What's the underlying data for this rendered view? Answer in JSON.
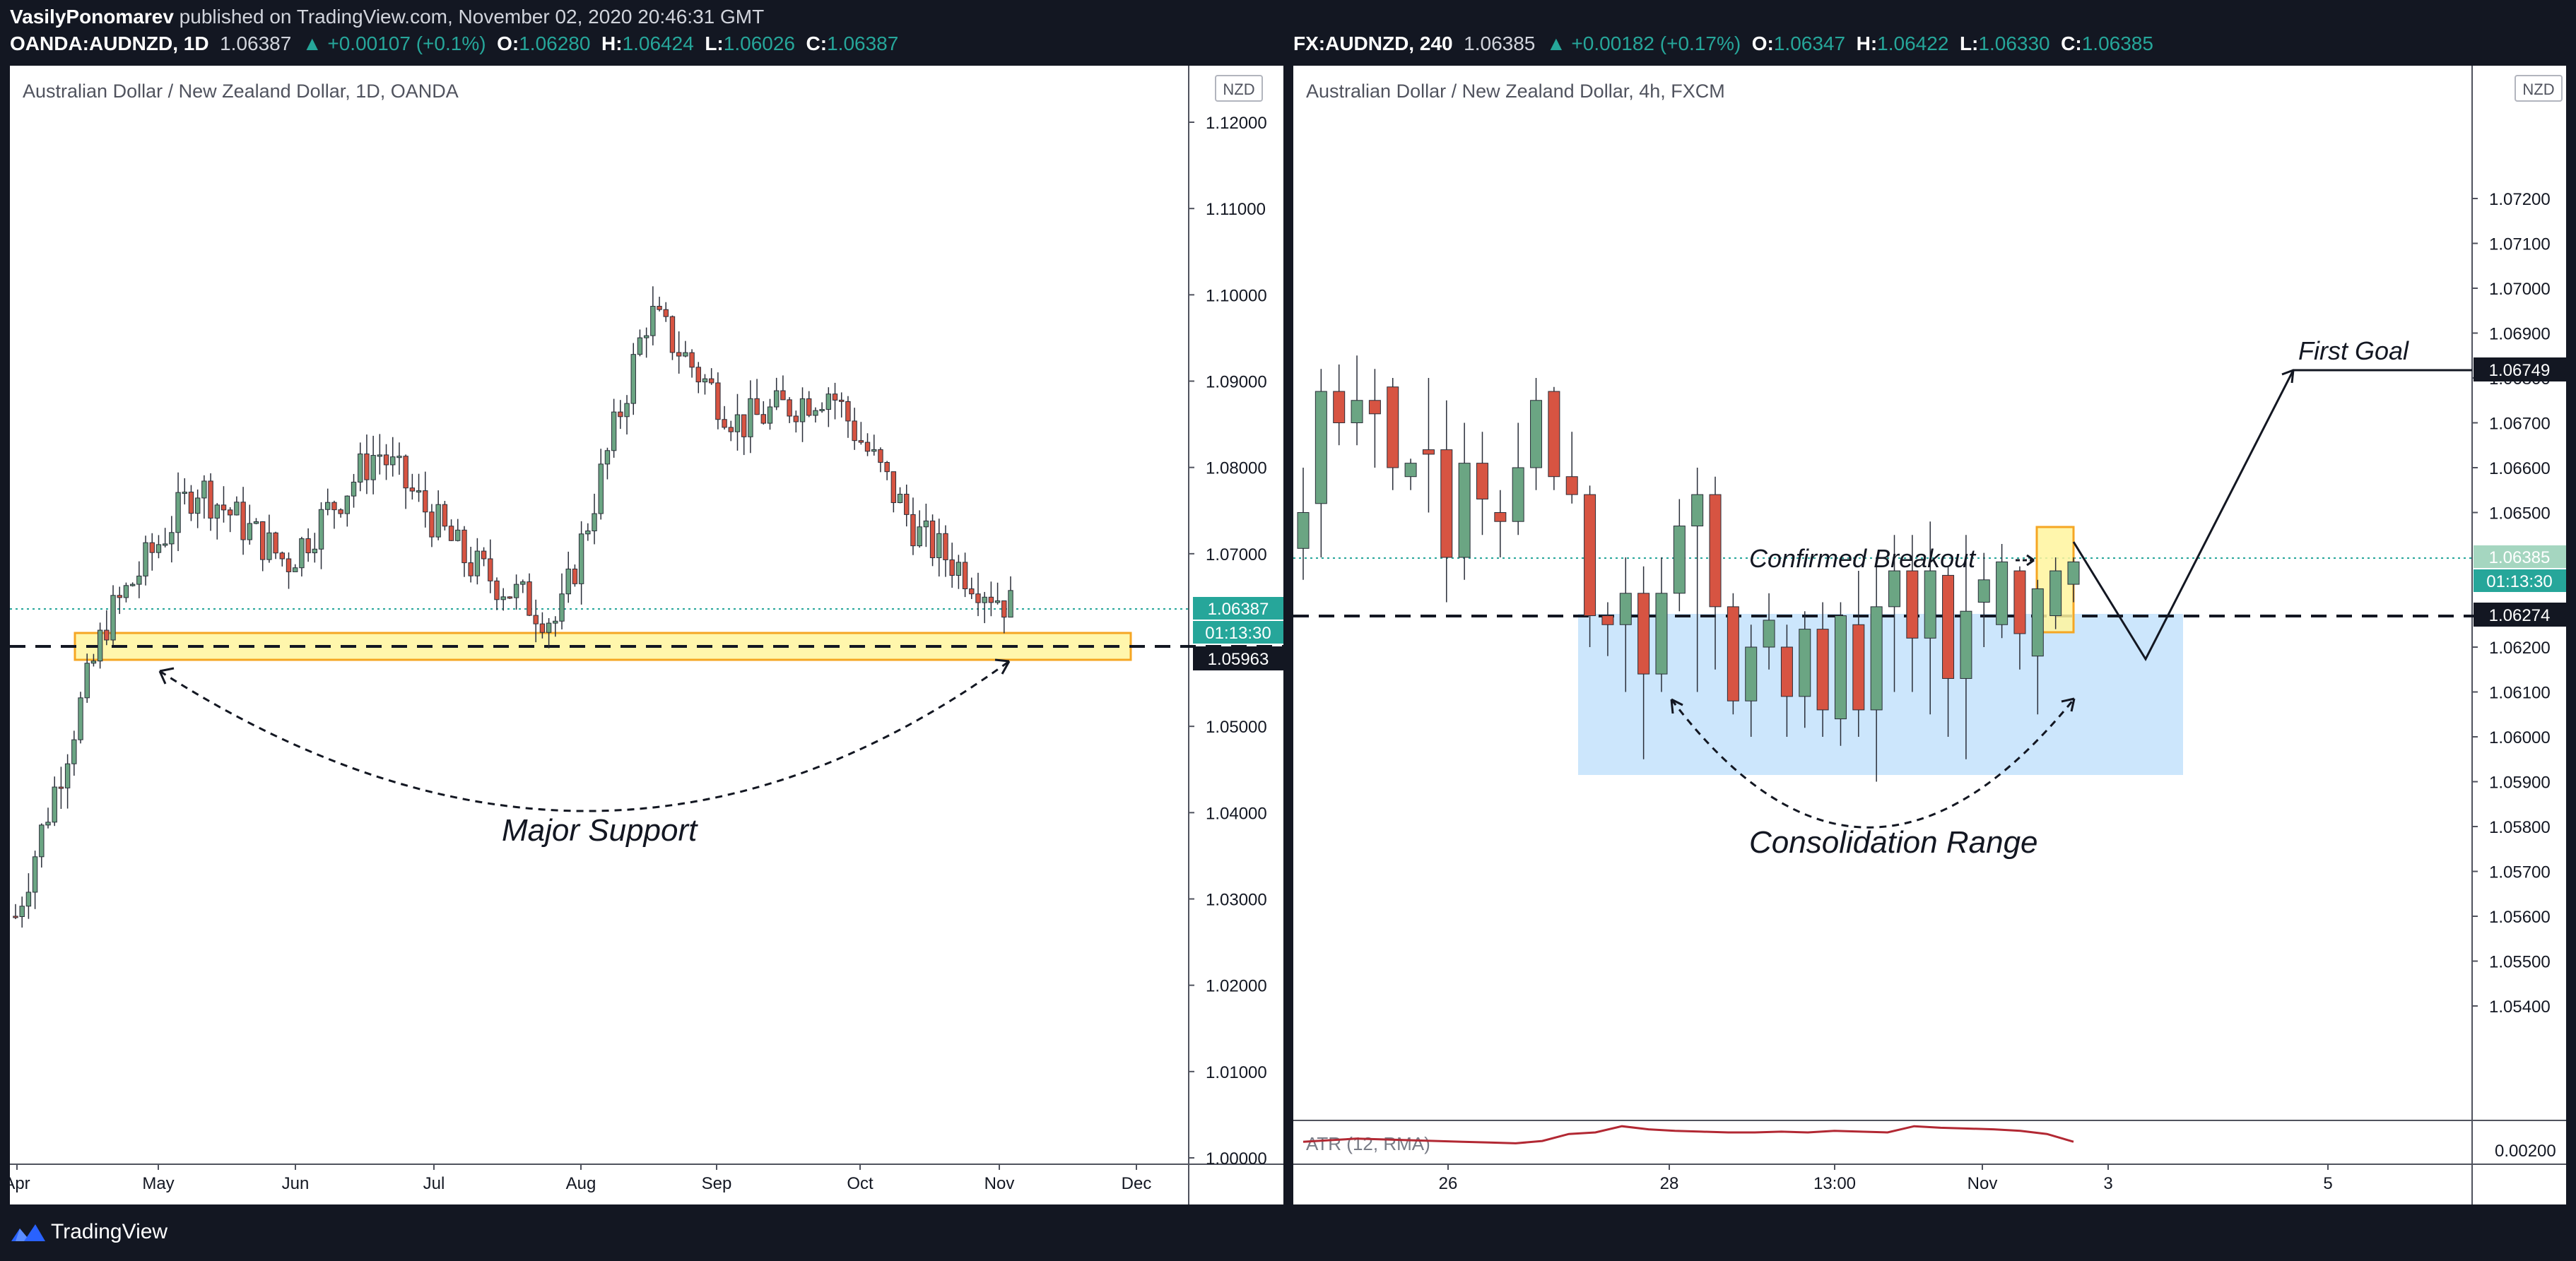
{
  "header": {
    "author": "VasilyPonomarev",
    "published": " published on TradingView.com, November 02, 2020 20:46:31 GMT"
  },
  "left": {
    "symbol": "OANDA:AUDNZD, 1D",
    "price": "1.06387",
    "change": "▲ +0.00107 (+0.1%)",
    "o_label": "O:",
    "o": "1.06280",
    "h_label": "H:",
    "h": "1.06424",
    "l_label": "L:",
    "l": "1.06026",
    "c_label": "C:",
    "c": "1.06387",
    "title": "Australian Dollar / New Zealand Dollar, 1D, OANDA",
    "currency_badge": "NZD",
    "price_label": "1.06387",
    "countdown": "01:13:30",
    "support_label": "1.05963",
    "annotation": "Major Support",
    "y_ticks": [
      "1.12000",
      "1.11000",
      "1.10000",
      "1.09000",
      "1.08000",
      "1.07000",
      "1.05000",
      "1.04000",
      "1.03000",
      "1.02000",
      "1.01000",
      "1.00000"
    ],
    "x_ticks": [
      "Apr",
      "May",
      "Jun",
      "Jul",
      "Aug",
      "Sep",
      "Oct",
      "Nov",
      "Dec"
    ]
  },
  "right": {
    "symbol": "FX:AUDNZD, 240",
    "price": "1.06385",
    "change": "▲ +0.00182 (+0.17%)",
    "o_label": "O:",
    "o": "1.06347",
    "h_label": "H:",
    "h": "1.06422",
    "l_label": "L:",
    "l": "1.06330",
    "c_label": "C:",
    "c": "1.06385",
    "title": "Australian Dollar / New Zealand Dollar, 4h, FXCM",
    "currency_badge": "NZD",
    "price_label": "1.06385",
    "countdown": "01:13:30",
    "level_label": "1.06274",
    "goal_label": "1.06749",
    "annotation_goal": "First Goal",
    "annotation_breakout": "Confirmed Breakout",
    "annotation_range": "Consolidation Range",
    "indicator": "ATR (12, RMA)",
    "indicator_value": "0.00200",
    "y_ticks": [
      "1.07200",
      "1.07100",
      "1.07000",
      "1.06900",
      "1.06800",
      "1.06700",
      "1.06600",
      "1.06500",
      "1.06200",
      "1.06100",
      "1.06000",
      "1.05900",
      "1.05800",
      "1.05700",
      "1.05600",
      "1.05500",
      "1.05400"
    ],
    "x_ticks": [
      "26",
      "28",
      "13:00",
      "Nov",
      "3",
      "5"
    ]
  },
  "footer": {
    "brand": "TradingView"
  },
  "chart_data": [
    {
      "type": "candlestick",
      "title": "Australian Dollar / New Zealand Dollar, 1D, OANDA",
      "ylim": [
        1.0,
        1.125
      ],
      "x": [
        "Apr",
        "May",
        "Jun",
        "Jul",
        "Aug",
        "Sep",
        "Oct",
        "Nov"
      ],
      "close_path": [
        1.028,
        1.062,
        1.078,
        1.069,
        1.082,
        1.069,
        1.062,
        1.098,
        1.085,
        1.089,
        1.072,
        1.0639
      ],
      "support_zone": [
        1.0586,
        1.0621
      ],
      "support_level": 1.05963,
      "last_price": 1.06387,
      "colors": {
        "up": "#6ba583",
        "down": "#d75442"
      }
    },
    {
      "type": "candlestick",
      "title": "Australian Dollar / New Zealand Dollar, 4h, FXCM",
      "ylim": [
        1.053,
        1.0725
      ],
      "x": [
        "26",
        "28",
        "13:00",
        "Nov",
        "3",
        "5"
      ],
      "candles": [
        [
          1.0642,
          1.066,
          1.0635,
          1.065
        ],
        [
          1.0652,
          1.0682,
          1.064,
          1.0677
        ],
        [
          1.0677,
          1.0683,
          1.0665,
          1.067
        ],
        [
          1.067,
          1.0685,
          1.0665,
          1.0675
        ],
        [
          1.0675,
          1.0682,
          1.066,
          1.0672
        ],
        [
          1.0678,
          1.068,
          1.0655,
          1.066
        ],
        [
          1.0658,
          1.0662,
          1.0655,
          1.0661
        ],
        [
          1.0664,
          1.068,
          1.065,
          1.0663
        ],
        [
          1.0664,
          1.0675,
          1.063,
          1.064
        ],
        [
          1.064,
          1.067,
          1.0635,
          1.0661
        ],
        [
          1.0661,
          1.0668,
          1.0645,
          1.0653
        ],
        [
          1.065,
          1.0655,
          1.064,
          1.0648
        ],
        [
          1.0648,
          1.067,
          1.0645,
          1.066
        ],
        [
          1.066,
          1.068,
          1.0655,
          1.0675
        ],
        [
          1.0677,
          1.0678,
          1.0655,
          1.0658
        ],
        [
          1.0658,
          1.0668,
          1.0652,
          1.0654
        ],
        [
          1.0654,
          1.0656,
          1.062,
          1.0627
        ],
        [
          1.0627,
          1.063,
          1.0618,
          1.0625
        ],
        [
          1.0625,
          1.064,
          1.061,
          1.0632
        ],
        [
          1.0632,
          1.0638,
          1.0595,
          1.0614
        ],
        [
          1.0614,
          1.064,
          1.061,
          1.0632
        ],
        [
          1.0632,
          1.0653,
          1.0628,
          1.0647
        ],
        [
          1.0647,
          1.066,
          1.061,
          1.0654
        ],
        [
          1.0654,
          1.0658,
          1.0615,
          1.0629
        ],
        [
          1.0629,
          1.0632,
          1.0605,
          1.0608
        ],
        [
          1.0608,
          1.0625,
          1.06,
          1.062
        ],
        [
          1.062,
          1.0632,
          1.0615,
          1.0626
        ],
        [
          1.062,
          1.0625,
          1.06,
          1.0609
        ],
        [
          1.0609,
          1.0628,
          1.0602,
          1.0624
        ],
        [
          1.0624,
          1.063,
          1.06,
          1.0606
        ],
        [
          1.0604,
          1.063,
          1.0598,
          1.0627
        ],
        [
          1.0625,
          1.0637,
          1.06,
          1.0606
        ],
        [
          1.0606,
          1.064,
          1.059,
          1.0629
        ],
        [
          1.0629,
          1.0645,
          1.061,
          1.0637
        ],
        [
          1.0637,
          1.0645,
          1.061,
          1.0622
        ],
        [
          1.0622,
          1.0648,
          1.0605,
          1.0637
        ],
        [
          1.0636,
          1.0638,
          1.06,
          1.0613
        ],
        [
          1.0613,
          1.0645,
          1.0595,
          1.0628
        ],
        [
          1.063,
          1.0641,
          1.062,
          1.0635
        ],
        [
          1.0625,
          1.0643,
          1.0622,
          1.0639
        ],
        [
          1.0637,
          1.0638,
          1.0615,
          1.0623
        ],
        [
          1.0618,
          1.0635,
          1.0605,
          1.0633
        ],
        [
          1.0627,
          1.064,
          1.0624,
          1.0637
        ],
        [
          1.0634,
          1.064,
          1.063,
          1.0639
        ]
      ],
      "consolidation_range": [
        1.0597,
        1.0628
      ],
      "breakout_level": 1.06274,
      "first_goal": 1.06749,
      "last_price": 1.06385,
      "colors": {
        "up": "#6ba583",
        "down": "#d75442"
      }
    }
  ]
}
